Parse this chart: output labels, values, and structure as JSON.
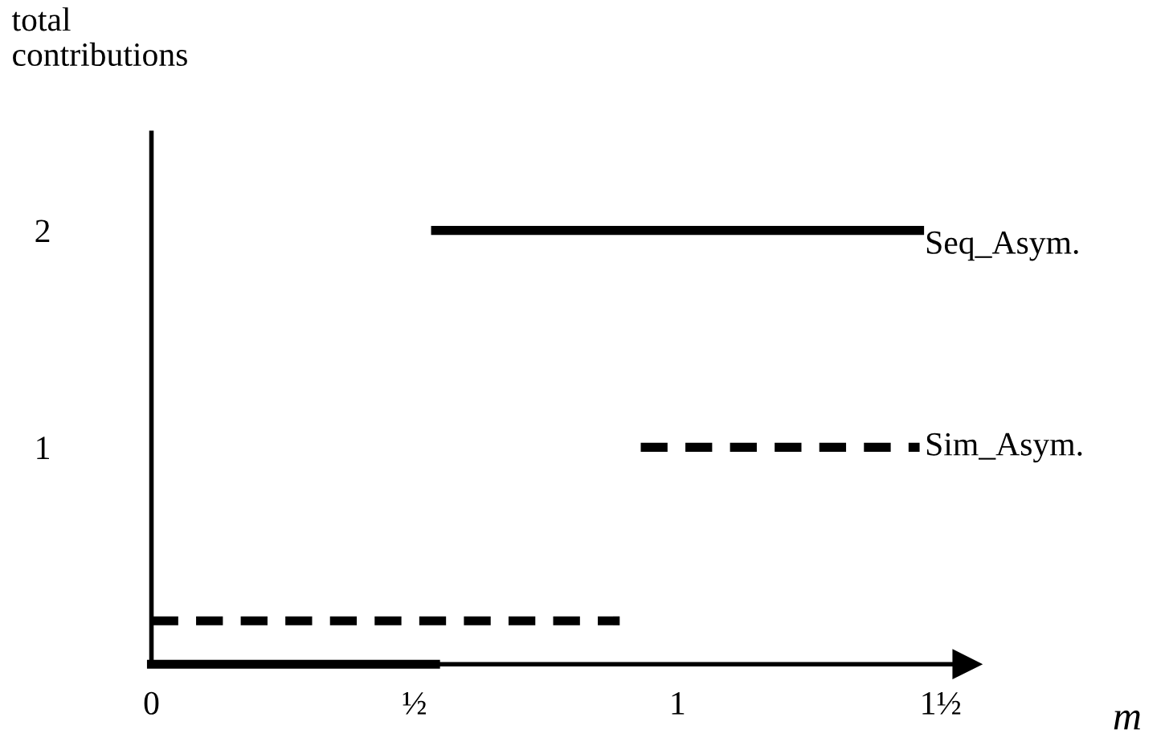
{
  "chart_data": {
    "type": "line",
    "xlabel": "m",
    "ylabel": "total\ncontributions",
    "xlim": [
      0,
      1.55
    ],
    "ylim": [
      0,
      2.45
    ],
    "xticks": [
      0,
      {
        "value": 0.5,
        "label": "½"
      },
      1,
      {
        "value": 1.5,
        "label": "1½"
      }
    ],
    "yticks": [
      1,
      2
    ],
    "grid": false,
    "legend": false,
    "marker": "none",
    "series": [
      {
        "color": "#000000",
        "line_style": "solid",
        "x": [
          0,
          0.54
        ],
        "values": [
          0,
          0
        ]
      },
      {
        "name": "Seq_Asym.",
        "color": "#000000",
        "line_style": "solid",
        "x": [
          0.54,
          1.46
        ],
        "values": [
          2,
          2
        ]
      },
      {
        "color": "#000000",
        "line_style": "dashed",
        "x": [
          0,
          0.89
        ],
        "values": [
          0.2,
          0.2
        ]
      },
      {
        "name": "Sim_Asym.",
        "color": "#000000",
        "line_style": "dashed",
        "x": [
          0.93,
          1.46
        ],
        "values": [
          1,
          1
        ]
      }
    ]
  }
}
